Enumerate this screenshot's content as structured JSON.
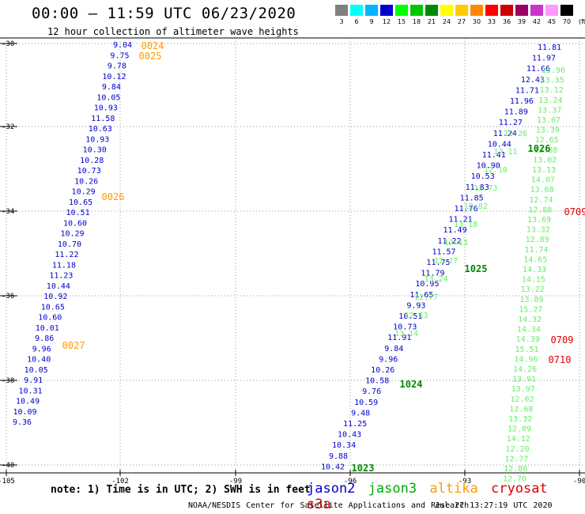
{
  "header": {
    "title": "00:00 – 11:59 UTC 06/23/2020",
    "subtitle": "12 hour collection of altimeter wave heights"
  },
  "color_scale": {
    "unit": "(ft)",
    "bins": [
      {
        "label": "3",
        "color": "#808080"
      },
      {
        "label": "6",
        "color": "#00ffff"
      },
      {
        "label": "9",
        "color": "#00b4ff"
      },
      {
        "label": "12",
        "color": "#0000cc"
      },
      {
        "label": "15",
        "color": "#00ff00"
      },
      {
        "label": "18",
        "color": "#00c800"
      },
      {
        "label": "21",
        "color": "#008800"
      },
      {
        "label": "24",
        "color": "#ffff00"
      },
      {
        "label": "27",
        "color": "#ffcc00"
      },
      {
        "label": "30",
        "color": "#ff8800"
      },
      {
        "label": "33",
        "color": "#ff0000"
      },
      {
        "label": "36",
        "color": "#cc0000"
      },
      {
        "label": "39",
        "color": "#990066"
      },
      {
        "label": "42",
        "color": "#cc33cc"
      },
      {
        "label": "45",
        "color": "#ff99ff"
      },
      {
        "label": "70",
        "color": "#000000"
      }
    ]
  },
  "map": {
    "x_ticks": [
      "-105",
      "-102",
      "-99",
      "-96",
      "-93",
      "-90"
    ],
    "y_ticks": [
      "-30",
      "-32",
      "-34",
      "-36",
      "-38",
      "-40"
    ]
  },
  "sat_colors": {
    "jason2": "#0000cc",
    "jason3": "#00aa00",
    "jason3_light": "#66ee66",
    "altika": "#ff9900",
    "cryosat": "#dd0000",
    "s3a": "#cc0000"
  },
  "tracks": {
    "west_jason2": {
      "values": [
        "9.04",
        "9.75",
        "9.78",
        "10.12",
        "9.84",
        "10.05",
        "10.93",
        "11.58",
        "10.63",
        "10.93",
        "10.30",
        "10.28",
        "10.73",
        "10.26",
        "10.29",
        "10.65",
        "10.51",
        "10.60",
        "10.29",
        "10.70",
        "11.22",
        "11.18",
        "11.23",
        "10.44",
        "10.92",
        "10.65",
        "10.60",
        "10.01",
        "9.86",
        "9.96",
        "10.40",
        "10.05",
        "9.91",
        "10.31",
        "10.49",
        "10.09",
        "9.36"
      ]
    },
    "east_jason2": {
      "values": [
        "11.81",
        "11.97",
        "11.66",
        "12.43",
        "11.71",
        "11.96",
        "11.89",
        "11.27",
        "11.24",
        "10.44",
        "11.41",
        "10.90",
        "10.53",
        "11.83",
        "11.85",
        "11.76",
        "11.21",
        "11.49",
        "11.22",
        "11.57",
        "11.75",
        "11.79",
        "10.95",
        "11.65",
        "9.93",
        "10.51",
        "10.73",
        "11.91",
        "9.84",
        "9.96",
        "10.26",
        "10.58",
        "9.76",
        "10.59",
        "9.48",
        "11.25",
        "10.43",
        "10.34",
        "9.88",
        "10.42"
      ]
    },
    "mid_jason3": {
      "values": [
        "12.26",
        "12.11",
        "12.10",
        "12.73",
        "12.82",
        "13.18",
        "12.13",
        "12.27",
        "13.24",
        "12.77",
        "12.63",
        "13.14"
      ]
    },
    "east_jason3": {
      "values": [
        "13.96",
        "13.35",
        "13.12",
        "13.24",
        "13.37",
        "13.07",
        "13.39",
        "12.65",
        "13.88",
        "13.02",
        "13.13",
        "14.07",
        "13.68",
        "12.74",
        "12.88",
        "13.69",
        "13.32",
        "12.89",
        "11.74",
        "14.65",
        "14.33",
        "14.15",
        "13.22",
        "13.89",
        "15.27",
        "14.32",
        "14.34",
        "14.39",
        "15.51",
        "14.96",
        "14.26",
        "13.91",
        "13.97",
        "12.02",
        "12.68",
        "13.32",
        "12.09",
        "14.12",
        "12.20",
        "12.77",
        "12.86",
        "12.70"
      ]
    },
    "altika_times": [
      "0024",
      "0025",
      "0026",
      "0027"
    ],
    "jason3_times": [
      "1026",
      "1025",
      "1024",
      "1023"
    ],
    "cryosat_times": [
      "0709",
      "0709",
      "0710"
    ]
  },
  "note": "note: 1) Time is in UTC; 2) SWH is in feet",
  "legend": {
    "jason2": "jason2",
    "jason3": "jason3",
    "altika": "altika",
    "cryosat": "cryosat",
    "s3a": "s3a"
  },
  "footer": {
    "credit": "NOAA/NESDIS Center for Satellite Applications and Research",
    "timestamp": "Jul 27 13:27:19 UTC 2020"
  }
}
